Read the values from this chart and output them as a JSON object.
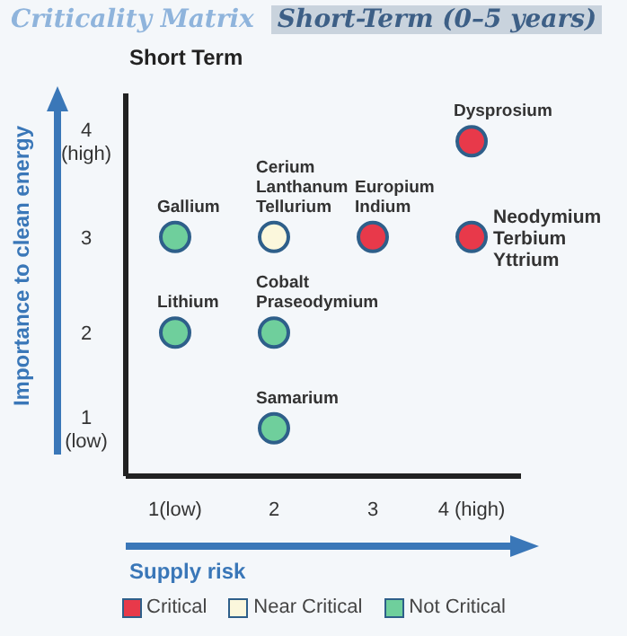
{
  "chart_data": {
    "type": "scatter",
    "title": "Criticality Matrix",
    "subtitle": "Short-Term (0–5 years)",
    "annotations": [
      "Short Term"
    ],
    "xlabel": "Supply risk",
    "ylabel": "Importance to clean energy",
    "xlim": [
      0.5,
      4.5
    ],
    "ylim": [
      0.5,
      4.5
    ],
    "xticks": [
      {
        "value": 1,
        "label": "1(low)"
      },
      2,
      3,
      {
        "value": 4,
        "label": "4 (high)"
      }
    ],
    "yticks": [
      {
        "value": 1,
        "label": "1\n(low)"
      },
      2,
      3,
      {
        "value": 4,
        "label": "4\n(high)"
      }
    ],
    "grid": false,
    "legend": "bottom",
    "marker": "circle",
    "series": [
      {
        "name": "Critical",
        "color": "#e8394a",
        "x": [
          3,
          4,
          4
        ],
        "values": [
          3,
          3,
          4
        ],
        "value_labels": [
          "Europium\nIndium",
          "Neodymium\nTerbium\nYttrium",
          "Dysprosium"
        ]
      },
      {
        "name": "Near Critical",
        "color": "#fbf7dc",
        "x": [
          2
        ],
        "values": [
          3
        ],
        "value_labels": [
          "Cerium\nLanthanum\nTellurium"
        ]
      },
      {
        "name": "Not Critical",
        "color": "#6fcf9c",
        "x": [
          1,
          1,
          2,
          2
        ],
        "values": [
          3,
          2,
          2,
          1
        ],
        "value_labels": [
          "Gallium",
          "Lithium",
          "Cobalt\nPraseodymium",
          "Samarium"
        ]
      }
    ]
  }
}
